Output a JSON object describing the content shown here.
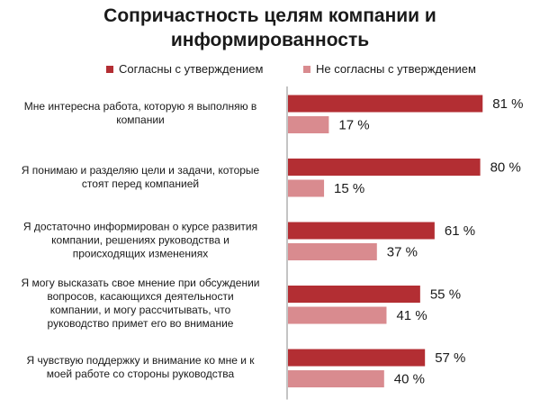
{
  "chart_data": {
    "type": "bar",
    "orientation": "horizontal",
    "title": [
      "Сопричастность целям компании и",
      "информированность"
    ],
    "categories": [
      [
        "Мне интересна  работа, которую я выполняю в",
        "компании"
      ],
      [
        "Я понимаю и разделяю цели и задачи, которые",
        "стоят перед компанией"
      ],
      [
        "Я достаточно информирован о курсе развития",
        "компании, решениях руководства и",
        "происходящих изменениях"
      ],
      [
        "Я могу высказать свое мнение при обсуждении",
        "вопросов, касающихся деятельности",
        "компании, и могу рассчитывать, что",
        "руководство примет его во внимание"
      ],
      [
        "Я чувствую поддержку и внимание ко мне и к",
        "моей работе со стороны руководства"
      ]
    ],
    "series": [
      {
        "name": "Согласны с утверждением",
        "values": [
          81,
          80,
          61,
          55,
          57
        ],
        "labels": [
          "81 %",
          "80 %",
          "61 %",
          "55 %",
          "57 %"
        ],
        "color": "#b32e33"
      },
      {
        "name": "Не согласны с утверждением",
        "values": [
          17,
          15,
          37,
          41,
          40
        ],
        "labels": [
          "17 %",
          "15 %",
          "37 %",
          "41 %",
          "40 %"
        ],
        "color": "#d98b8f"
      }
    ],
    "xlim": [
      0,
      100
    ],
    "legend_position": "top",
    "grid": false
  }
}
